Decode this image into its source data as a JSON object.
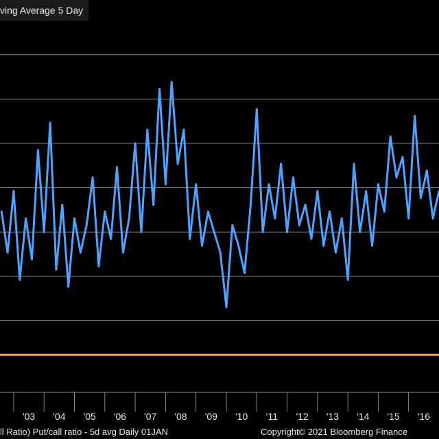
{
  "title": "ving Average 5 Day",
  "footer_left": "ll Ratio) Put/call ratio - 5d avg  Daily 01JAN",
  "footer_right": "Copyright© 2021 Bloomberg Finance",
  "colors": {
    "background": "#000000",
    "series": "#4da3ff",
    "reference": "#f5a34a",
    "grid": "#8a8a8a",
    "text": "#e8e8e8"
  },
  "chart_data": {
    "type": "line",
    "title": "ving Average 5 Day",
    "series": [
      {
        "name": "Put/call ratio - 5d avg",
        "color": "#4da3ff",
        "x": [
          2002.6,
          2002.8,
          2003.0,
          2003.2,
          2003.4,
          2003.6,
          2003.8,
          2004.0,
          2004.2,
          2004.4,
          2004.6,
          2004.8,
          2005.0,
          2005.2,
          2005.4,
          2005.6,
          2005.8,
          2006.0,
          2006.2,
          2006.4,
          2006.6,
          2006.8,
          2007.0,
          2007.2,
          2007.4,
          2007.6,
          2007.8,
          2008.0,
          2008.2,
          2008.4,
          2008.6,
          2008.8,
          2009.0,
          2009.2,
          2009.4,
          2009.6,
          2009.8,
          2010.0,
          2010.2,
          2010.4,
          2010.6,
          2010.8,
          2011.0,
          2011.2,
          2011.4,
          2011.6,
          2011.8,
          2012.0,
          2012.2,
          2012.4,
          2012.6,
          2012.8,
          2013.0,
          2013.2,
          2013.4,
          2013.6,
          2013.8,
          2014.0,
          2014.2,
          2014.4,
          2014.6,
          2014.8,
          2015.0,
          2015.2,
          2015.4,
          2015.6,
          2015.8,
          2016.0,
          2016.2,
          2016.4,
          2016.6,
          2016.8,
          2017.0
        ],
        "y": [
          0.72,
          0.6,
          0.78,
          0.52,
          0.7,
          0.58,
          0.9,
          0.66,
          0.98,
          0.55,
          0.74,
          0.5,
          0.7,
          0.6,
          0.68,
          0.82,
          0.56,
          0.72,
          0.64,
          0.85,
          0.6,
          0.7,
          0.92,
          0.66,
          0.96,
          0.74,
          1.08,
          0.8,
          1.1,
          0.86,
          0.96,
          0.64,
          0.8,
          0.62,
          0.72,
          0.66,
          0.6,
          0.44,
          0.68,
          0.62,
          0.54,
          0.74,
          1.02,
          0.66,
          0.8,
          0.7,
          0.86,
          0.66,
          0.82,
          0.68,
          0.74,
          0.64,
          0.78,
          0.62,
          0.72,
          0.6,
          0.7,
          0.52,
          0.86,
          0.66,
          0.78,
          0.62,
          0.8,
          0.72,
          0.94,
          0.82,
          0.88,
          0.7,
          1.0,
          0.76,
          0.84,
          0.7,
          0.78
        ]
      }
    ],
    "x_ticks": [
      "'03",
      "'04",
      "'05",
      "'06",
      "'07",
      "'08",
      "'09",
      "'10",
      "'11",
      "'12",
      "'13",
      "'14",
      "'15",
      "'16"
    ],
    "reference_line": {
      "value": 0.3,
      "color": "#f5a34a"
    },
    "xlim": [
      2002.55,
      2017.0
    ],
    "ylim": [
      0.19,
      1.28
    ],
    "grid": true,
    "gridlines_y": [
      0.4,
      0.53,
      0.66,
      0.79,
      0.92,
      1.05,
      1.18
    ]
  }
}
